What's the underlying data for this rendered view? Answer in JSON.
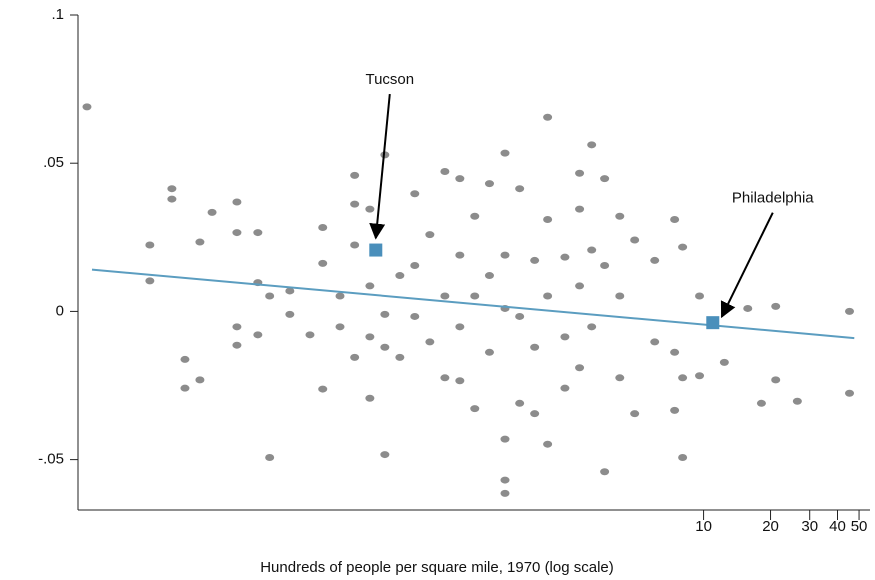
{
  "chart_data": {
    "type": "scatter",
    "xlabel": "Hundreds of people per square mile, 1970 (log scale)",
    "xscale": "log",
    "xlim": [
      0.0154,
      56
    ],
    "ylim": [
      -0.067,
      0.1
    ],
    "xticks": [
      10,
      20,
      30,
      40,
      50
    ],
    "yticks": [
      {
        "value": 0.1,
        "label": ".1"
      },
      {
        "value": 0.05,
        "label": ".05"
      },
      0,
      {
        "value": -0.05,
        "label": "-.05"
      }
    ],
    "points": {
      "color": "#8c8c8c",
      "x": [
        0.0169,
        0.0324,
        0.0324,
        0.0407,
        0.0407,
        0.0466,
        0.0466,
        0.0544,
        0.0544,
        0.0617,
        0.0798,
        0.0798,
        0.0798,
        0.0798,
        0.0991,
        0.0991,
        0.0991,
        0.112,
        0.112,
        0.138,
        0.138,
        0.17,
        0.194,
        0.194,
        0.194,
        0.232,
        0.232,
        0.27,
        0.27,
        0.27,
        0.27,
        0.316,
        0.316,
        0.316,
        0.316,
        0.369,
        0.369,
        0.369,
        0.369,
        0.431,
        0.431,
        0.503,
        0.503,
        0.503,
        0.588,
        0.588,
        0.687,
        0.687,
        0.687,
        0.802,
        0.802,
        0.802,
        0.802,
        0.936,
        0.936,
        0.936,
        1.09,
        1.09,
        1.09,
        1.28,
        1.28,
        1.28,
        1.28,
        1.28,
        1.28,
        1.49,
        1.49,
        1.49,
        1.74,
        1.74,
        1.74,
        1.99,
        1.99,
        1.99,
        1.99,
        2.38,
        2.38,
        2.38,
        2.77,
        2.77,
        2.77,
        2.77,
        3.14,
        3.14,
        3.14,
        3.59,
        3.59,
        3.59,
        4.2,
        4.2,
        4.2,
        4.9,
        4.9,
        6.03,
        6.03,
        7.41,
        7.41,
        7.41,
        8.05,
        8.05,
        8.05,
        9.59,
        9.59,
        12.4,
        15.8,
        18.2,
        21.1,
        21.1,
        26.4,
        45.3,
        45.3
      ],
      "y": [
        0.069,
        0.0224,
        0.0103,
        0.0414,
        0.0379,
        -0.0162,
        -0.0259,
        0.0234,
        -0.0231,
        0.0334,
        0.0369,
        0.0266,
        -0.0052,
        -0.0114,
        0.0266,
        0.0097,
        -0.0079,
        -0.0493,
        0.0052,
        -0.001,
        0.0069,
        -0.0079,
        0.0283,
        -0.0262,
        0.0162,
        0.0052,
        -0.0052,
        0.0459,
        0.0362,
        0.0224,
        -0.0155,
        0.0345,
        0.0086,
        -0.0086,
        -0.0293,
        0.0528,
        -0.0483,
        -0.001,
        -0.0121,
        0.0121,
        -0.0155,
        0.0397,
        -0.0017,
        0.0155,
        -0.0103,
        0.0259,
        0.0472,
        0.0052,
        -0.0224,
        0.0448,
        0.019,
        -0.0052,
        -0.0234,
        0.0321,
        0.0052,
        -0.0328,
        0.0431,
        0.0121,
        -0.0138,
        0.0534,
        0.019,
        0.001,
        -0.0431,
        -0.0569,
        -0.0614,
        0.0414,
        -0.0017,
        -0.031,
        0.0172,
        -0.0121,
        -0.0345,
        0.0655,
        0.031,
        0.0052,
        -0.0448,
        0.0183,
        -0.0086,
        -0.0259,
        0.0466,
        0.0345,
        0.0086,
        -0.019,
        0.0562,
        0.0207,
        -0.0052,
        0.0448,
        0.0155,
        -0.0541,
        0.0321,
        0.0052,
        -0.0224,
        0.0241,
        -0.0345,
        0.0172,
        -0.0103,
        0.031,
        -0.0138,
        -0.0334,
        0.0217,
        -0.0493,
        -0.0224,
        0.0052,
        -0.0217,
        -0.0172,
        0.001,
        -0.031,
        0.0017,
        -0.0231,
        -0.0303,
        0,
        -0.0276
      ]
    },
    "fit": {
      "color": "#5b9dc0",
      "x": [
        0.0178,
        47.6
      ],
      "y": [
        0.0141,
        -0.009
      ]
    },
    "highlights": {
      "color": "#4a8fbb",
      "labels": [
        "Tucson",
        "Philadelphia"
      ],
      "x": [
        0.336,
        11.0
      ],
      "y": [
        0.0207,
        -0.0038
      ]
    }
  }
}
